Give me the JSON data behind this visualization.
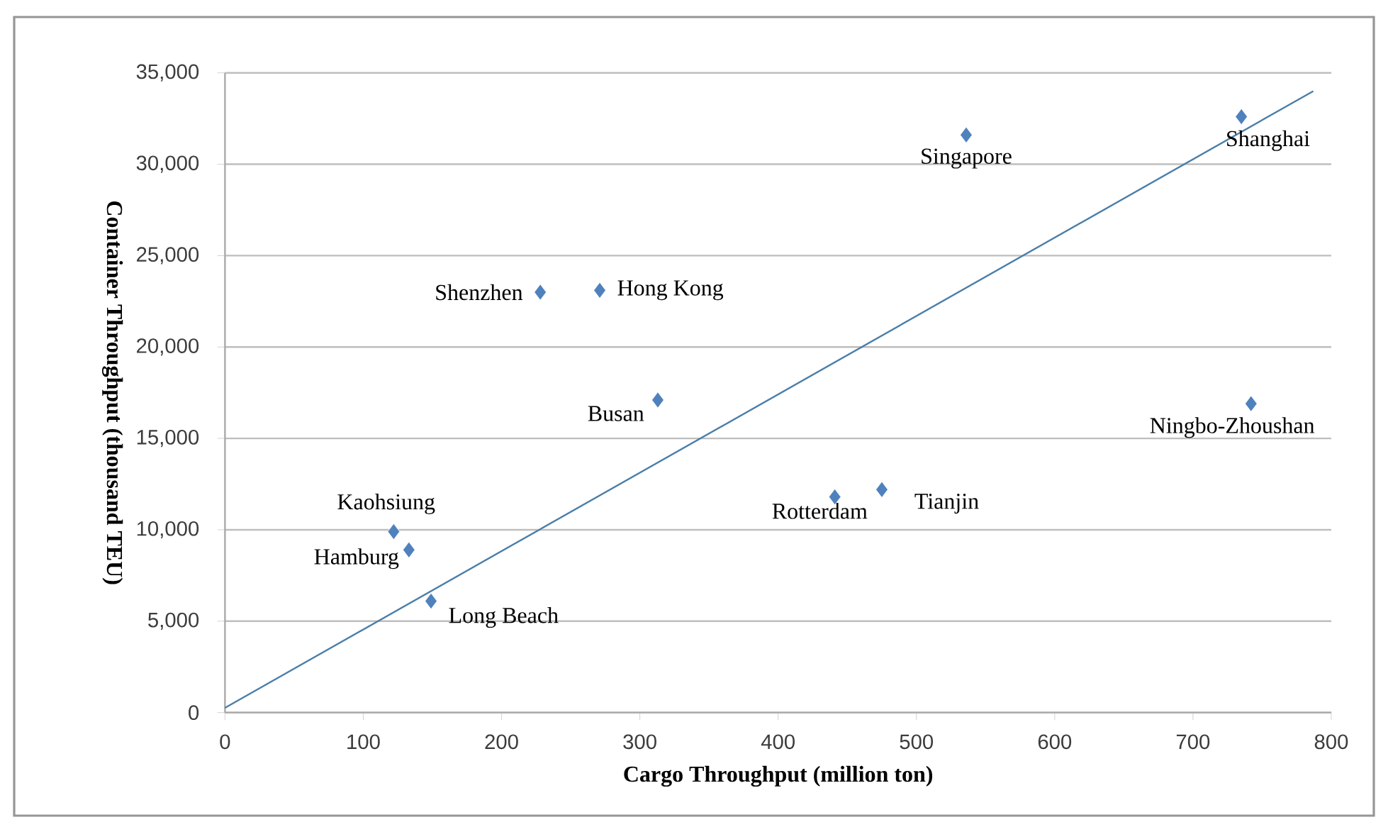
{
  "chart_data": {
    "type": "scatter",
    "xlabel": "Cargo Throughput (million ton)",
    "ylabel": "Container Throughput (thousand TEU)",
    "xlim": [
      0,
      800
    ],
    "ylim": [
      0,
      35000
    ],
    "xticks": [
      0,
      100,
      200,
      300,
      400,
      500,
      600,
      700,
      800
    ],
    "yticks": [
      0,
      {
        "value": 5000,
        "label": "5,000"
      },
      {
        "value": 10000,
        "label": "10,000"
      },
      {
        "value": 15000,
        "label": "15,000"
      },
      {
        "value": 20000,
        "label": "20,000"
      },
      {
        "value": 25000,
        "label": "25,000"
      },
      {
        "value": 30000,
        "label": "30,000"
      },
      {
        "value": 35000,
        "label": "35,000"
      }
    ],
    "grid": "y",
    "series": [
      {
        "marker": "diamond",
        "color": "#4f81bd",
        "x": [
          735,
          536,
          228,
          271,
          742,
          313,
          475,
          441,
          122,
          133,
          149
        ],
        "values": [
          32600,
          31600,
          23000,
          23100,
          16900,
          17100,
          12200,
          11800,
          9900,
          8900,
          6100
        ]
      },
      {
        "type": "line",
        "color": "#4a7ea8",
        "x": [
          0,
          787
        ],
        "values": [
          260,
          34000
        ]
      }
    ],
    "annotations": [
      {
        "text": "Shanghai",
        "x": 735,
        "y": 32600
      },
      {
        "text": "Singapore",
        "x": 536,
        "y": 31600
      },
      {
        "text": "Shenzhen",
        "x": 228,
        "y": 23000
      },
      {
        "text": "Hong Kong",
        "x": 271,
        "y": 23100
      },
      {
        "text": "Ningbo-Zhoushan",
        "x": 742,
        "y": 16900
      },
      {
        "text": "Busan",
        "x": 313,
        "y": 17100
      },
      {
        "text": "Tianjin",
        "x": 475,
        "y": 12200
      },
      {
        "text": "Rotterdam",
        "x": 441,
        "y": 11800
      },
      {
        "text": "Kaohsiung",
        "x": 122,
        "y": 9900
      },
      {
        "text": "Hamburg",
        "x": 133,
        "y": 8900
      },
      {
        "text": "Long Beach",
        "x": 149,
        "y": 6100
      }
    ]
  }
}
